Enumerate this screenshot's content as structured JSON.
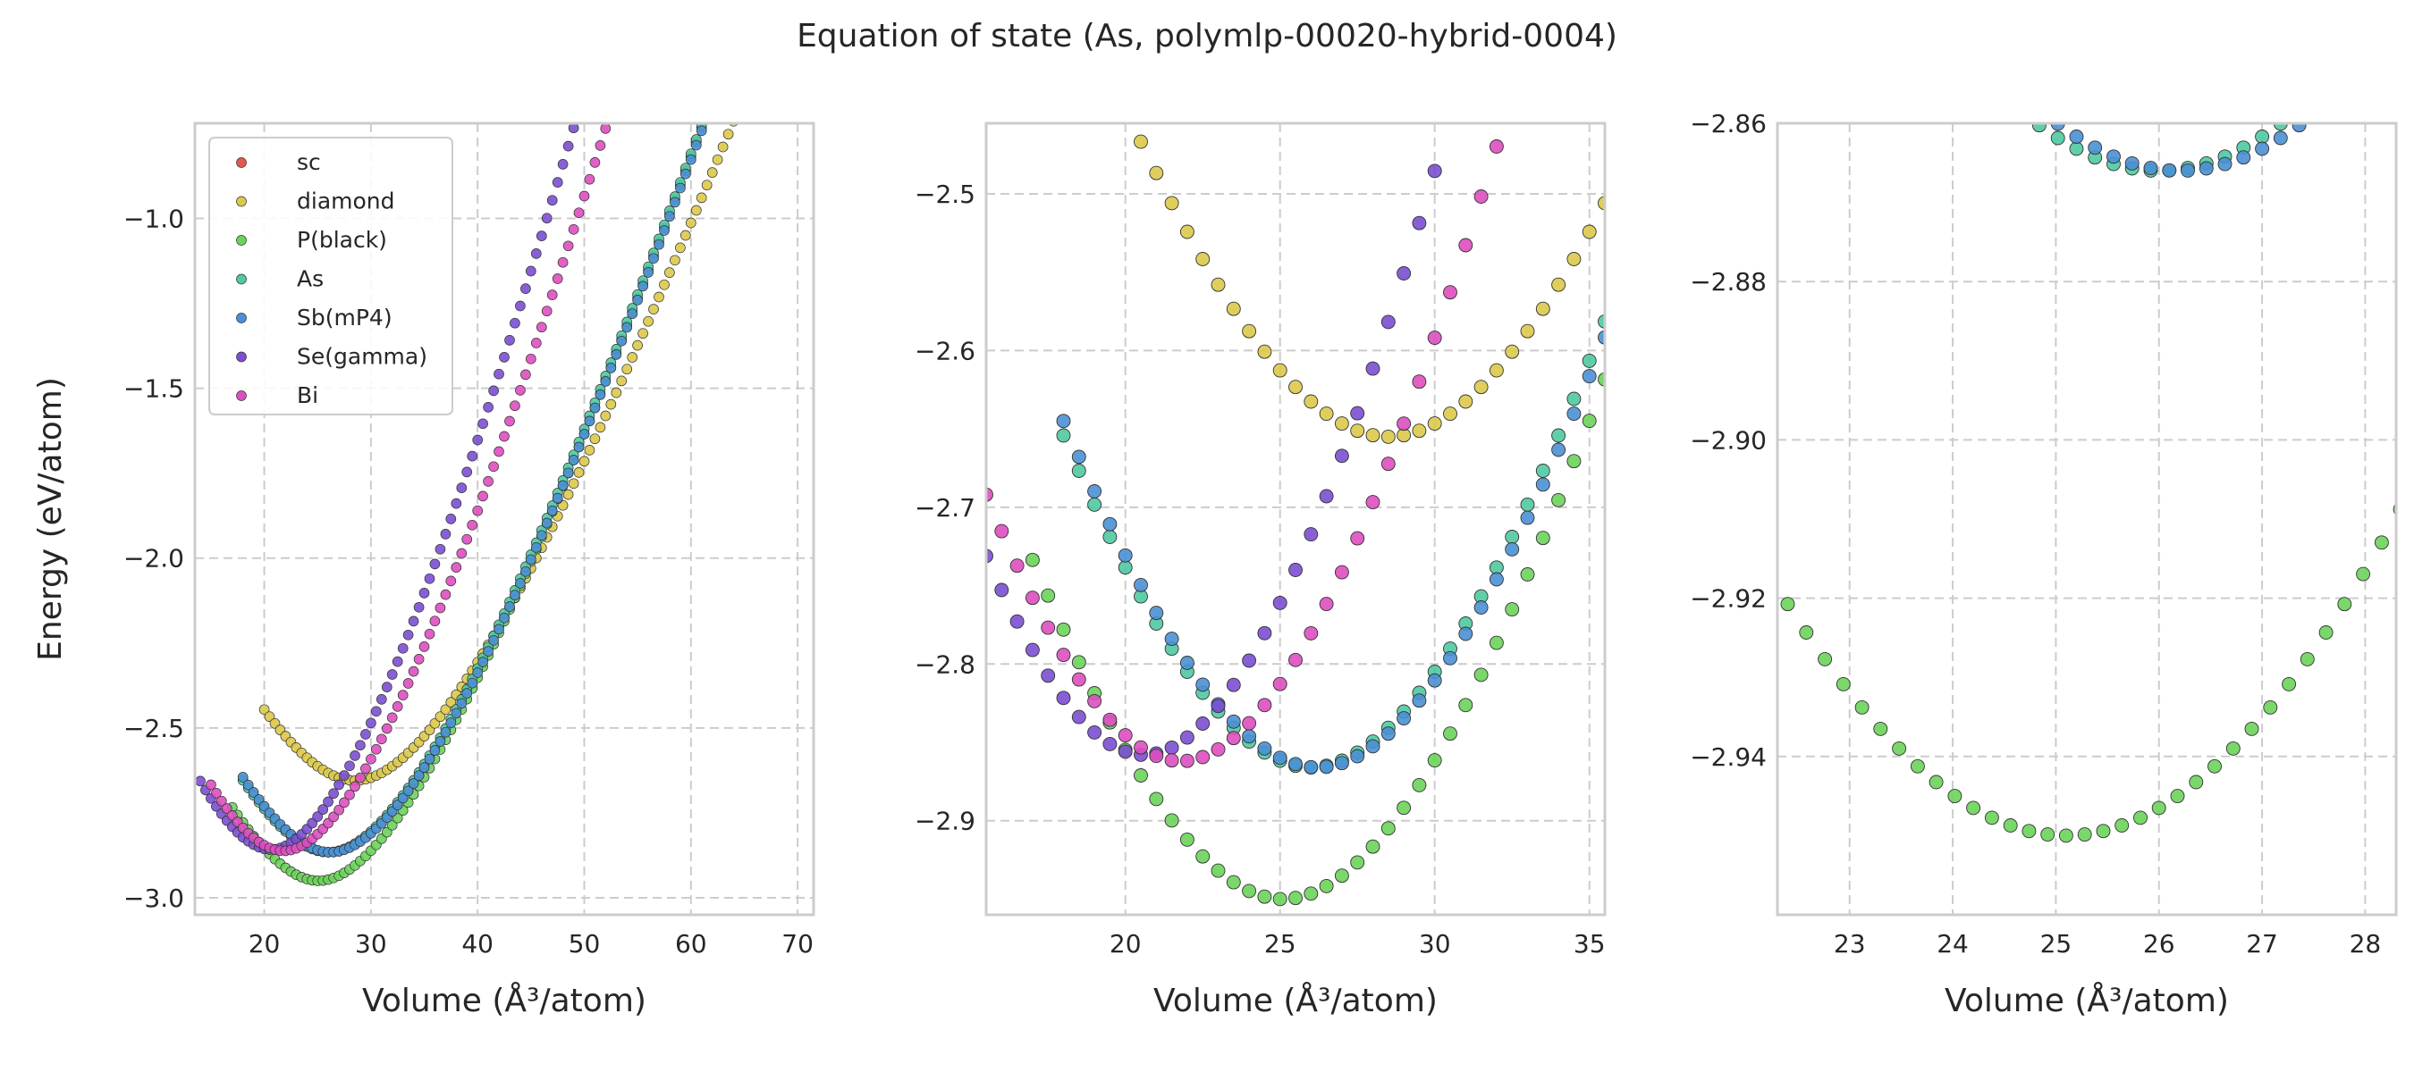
{
  "figure": {
    "title": "Equation of state (As, polymlp-00020-hybrid-0004)"
  },
  "legend": [
    "sc",
    "diamond",
    "P(black)",
    "As",
    "Sb(mP4)",
    "Se(gamma)",
    "Bi"
  ],
  "colors": {
    "sc": "#e05a4e",
    "diamond": "#dcc94a",
    "P(black)": "#6cd35a",
    "As": "#4fc9a1",
    "Sb(mP4)": "#4a90d4",
    "Se(gamma)": "#7b4fd2",
    "Bi": "#dd4fc0"
  },
  "chart_data": [
    {
      "type": "scatter",
      "xlabel": "Volume (Å³/atom)",
      "ylabel": "Energy (eV/atom)",
      "xlim": [
        13.5,
        71.5
      ],
      "ylim": [
        -3.05,
        -0.72
      ],
      "xticks": [
        20,
        30,
        40,
        50,
        60,
        70
      ],
      "yticks": [
        -3.0,
        -2.5,
        -2.0,
        -1.5,
        -1.0
      ],
      "tick_labels_x": [
        "20",
        "30",
        "40",
        "50",
        "60",
        "70"
      ],
      "tick_labels_y": [
        "−3.0",
        "−2.5",
        "−2.0",
        "−1.5",
        "−1.0"
      ],
      "grid": true,
      "legend_position": "top-left",
      "series": [
        {
          "name": "diamond",
          "eos": {
            "v0": 28.5,
            "e0": -2.655,
            "b": 0.004
          },
          "x_range": [
            20,
            71
          ]
        },
        {
          "name": "P(black)",
          "eos": {
            "v0": 25.1,
            "e0": -2.95,
            "b": 0.0045
          },
          "x_range": [
            17,
            62
          ]
        },
        {
          "name": "As",
          "eos": {
            "v0": 26.0,
            "e0": -2.866,
            "b": 0.0045
          },
          "x_range": [
            18,
            64
          ]
        },
        {
          "name": "Sb(mP4)",
          "eos": {
            "v0": 26.2,
            "e0": -2.866,
            "b": 0.0045
          },
          "x_range": [
            18,
            65
          ]
        },
        {
          "name": "Se(gamma)",
          "eos": {
            "v0": 20.6,
            "e0": -2.858,
            "b": 0.006
          },
          "x_range": [
            14,
            50.5
          ]
        },
        {
          "name": "Bi",
          "eos": {
            "v0": 21.8,
            "e0": -2.862,
            "b": 0.0055
          },
          "x_range": [
            15,
            54
          ]
        }
      ]
    },
    {
      "type": "scatter",
      "xlabel": "Volume (Å³/atom)",
      "ylabel": "",
      "xlim": [
        15.5,
        35.5
      ],
      "ylim": [
        -2.96,
        -2.455
      ],
      "xticks": [
        20,
        25,
        30,
        35
      ],
      "yticks": [
        -2.9,
        -2.8,
        -2.7,
        -2.6,
        -2.5
      ],
      "tick_labels_x": [
        "20",
        "25",
        "30",
        "35"
      ],
      "tick_labels_y": [
        "−2.9",
        "−2.8",
        "−2.7",
        "−2.6",
        "−2.5"
      ],
      "grid": true,
      "series": [
        {
          "name": "diamond",
          "eos": {
            "v0": 28.5,
            "e0": -2.655,
            "b": 0.004
          },
          "x_range": [
            20,
            71
          ]
        },
        {
          "name": "P(black)",
          "eos": {
            "v0": 25.1,
            "e0": -2.95,
            "b": 0.0045
          },
          "x_range": [
            17,
            62
          ]
        },
        {
          "name": "As",
          "eos": {
            "v0": 26.0,
            "e0": -2.866,
            "b": 0.0045
          },
          "x_range": [
            18,
            64
          ]
        },
        {
          "name": "Sb(mP4)",
          "eos": {
            "v0": 26.2,
            "e0": -2.866,
            "b": 0.0045
          },
          "x_range": [
            18,
            65
          ]
        },
        {
          "name": "Se(gamma)",
          "eos": {
            "v0": 20.6,
            "e0": -2.858,
            "b": 0.006
          },
          "x_range": [
            14,
            50.5
          ]
        },
        {
          "name": "Bi",
          "eos": {
            "v0": 21.8,
            "e0": -2.862,
            "b": 0.0055
          },
          "x_range": [
            15,
            54
          ]
        }
      ]
    },
    {
      "type": "scatter",
      "xlabel": "Volume (Å³/atom)",
      "ylabel": "",
      "xlim": [
        22.3,
        28.3
      ],
      "ylim": [
        -2.96,
        -2.86
      ],
      "xticks": [
        23,
        24,
        25,
        26,
        27,
        28
      ],
      "yticks": [
        -2.94,
        -2.92,
        -2.9,
        -2.88,
        -2.86
      ],
      "tick_labels_x": [
        "23",
        "24",
        "25",
        "26",
        "27",
        "28"
      ],
      "tick_labels_y": [
        "−2.94",
        "−2.92",
        "−2.90",
        "−2.88",
        "−2.86"
      ],
      "grid": true,
      "series": [
        {
          "name": "P(black)",
          "eos": {
            "v0": 25.1,
            "e0": -2.95,
            "b": 0.0045
          },
          "x_range": [
            17,
            62
          ]
        },
        {
          "name": "As",
          "eos": {
            "v0": 26.0,
            "e0": -2.866,
            "b": 0.0045
          },
          "x_range": [
            18,
            64
          ]
        },
        {
          "name": "Sb(mP4)",
          "eos": {
            "v0": 26.2,
            "e0": -2.866,
            "b": 0.0045
          },
          "x_range": [
            18,
            65
          ]
        }
      ]
    }
  ]
}
